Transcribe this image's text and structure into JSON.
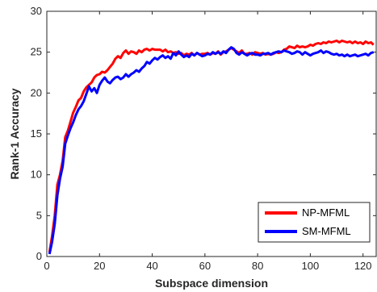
{
  "chart_data": {
    "type": "line",
    "title": "",
    "xlabel": "Subspace dimension",
    "ylabel": "Rank-1 Accuracy",
    "xlim": [
      0,
      125
    ],
    "ylim": [
      0,
      30
    ],
    "x_ticks": [
      "0",
      "20",
      "40",
      "60",
      "80",
      "100",
      "120"
    ],
    "y_ticks": [
      "0",
      "5",
      "10",
      "15",
      "20",
      "25",
      "30"
    ],
    "grid": false,
    "legend_position": "bottom-right",
    "x": [
      1,
      2,
      3,
      4,
      5,
      6,
      7,
      8,
      9,
      10,
      11,
      12,
      13,
      14,
      15,
      16,
      17,
      18,
      19,
      20,
      21,
      22,
      23,
      24,
      25,
      26,
      27,
      28,
      29,
      30,
      31,
      32,
      33,
      34,
      35,
      36,
      37,
      38,
      39,
      40,
      41,
      42,
      43,
      44,
      45,
      46,
      47,
      48,
      49,
      50,
      51,
      52,
      53,
      54,
      55,
      56,
      57,
      58,
      59,
      60,
      61,
      62,
      63,
      64,
      65,
      66,
      67,
      68,
      69,
      70,
      71,
      72,
      73,
      74,
      75,
      76,
      77,
      78,
      79,
      80,
      81,
      82,
      83,
      84,
      85,
      86,
      87,
      88,
      89,
      90,
      91,
      92,
      93,
      94,
      95,
      96,
      97,
      98,
      99,
      100,
      101,
      102,
      103,
      104,
      105,
      106,
      107,
      108,
      109,
      110,
      111,
      112,
      113,
      114,
      115,
      116,
      117,
      118,
      119,
      120,
      121,
      122,
      123,
      124
    ],
    "series": [
      {
        "name": "NP-MFML",
        "color": "#ff0000",
        "values": [
          0.5,
          2.5,
          5.0,
          8.8,
          10.0,
          11.7,
          14.6,
          15.4,
          16.5,
          17.6,
          18.3,
          19.1,
          19.4,
          20.2,
          20.7,
          21.0,
          21.3,
          21.9,
          22.2,
          22.3,
          22.6,
          22.5,
          22.8,
          23.2,
          23.6,
          24.2,
          24.5,
          24.3,
          24.9,
          25.2,
          24.8,
          25.1,
          25.0,
          24.8,
          25.2,
          25.0,
          25.3,
          25.4,
          25.2,
          25.4,
          25.3,
          25.3,
          25.3,
          25.1,
          25.3,
          25.0,
          25.1,
          24.9,
          25.0,
          24.8,
          24.9,
          24.6,
          24.8,
          24.7,
          24.9,
          24.6,
          24.9,
          24.7,
          24.8,
          24.8,
          24.9,
          24.7,
          24.9,
          24.8,
          25.1,
          24.7,
          25.0,
          25.1,
          25.3,
          25.5,
          25.3,
          25.1,
          24.9,
          25.2,
          24.8,
          24.8,
          24.9,
          24.7,
          25.0,
          24.9,
          24.8,
          24.9,
          24.7,
          24.8,
          24.7,
          24.8,
          25.0,
          24.9,
          25.0,
          25.3,
          25.4,
          25.7,
          25.6,
          25.5,
          25.8,
          25.6,
          25.7,
          25.6,
          25.7,
          25.9,
          25.8,
          26.0,
          26.1,
          26.0,
          26.2,
          26.1,
          26.3,
          26.2,
          26.3,
          26.4,
          26.2,
          26.4,
          26.3,
          26.2,
          26.3,
          26.1,
          26.3,
          26.1,
          26.2,
          26.0,
          26.3,
          26.1,
          26.2,
          25.9
        ]
      },
      {
        "name": "SM-MFML",
        "color": "#0000ff",
        "values": [
          0.3,
          1.8,
          4.0,
          7.5,
          9.5,
          11.0,
          13.8,
          14.8,
          15.7,
          16.4,
          17.3,
          18.0,
          18.4,
          19.0,
          19.9,
          20.8,
          20.2,
          20.6,
          20.0,
          21.0,
          21.5,
          21.9,
          21.4,
          21.2,
          21.6,
          21.9,
          22.0,
          21.7,
          21.9,
          22.3,
          22.0,
          22.3,
          22.5,
          22.8,
          22.6,
          23.0,
          23.3,
          23.8,
          23.6,
          24.0,
          24.3,
          24.1,
          24.4,
          24.6,
          24.3,
          24.5,
          24.2,
          24.9,
          24.6,
          25.1,
          24.7,
          24.4,
          24.6,
          24.4,
          24.8,
          24.6,
          24.9,
          24.7,
          24.5,
          24.6,
          24.8,
          24.7,
          25.0,
          24.8,
          25.0,
          24.8,
          25.1,
          24.9,
          25.3,
          25.6,
          25.4,
          24.9,
          24.7,
          25.0,
          24.8,
          24.6,
          24.8,
          24.9,
          24.7,
          24.7,
          24.6,
          24.8,
          24.8,
          24.9,
          24.7,
          24.9,
          25.0,
          25.1,
          25.0,
          25.2,
          25.1,
          25.0,
          24.8,
          24.9,
          25.1,
          25.0,
          24.7,
          25.0,
          24.8,
          24.6,
          24.8,
          24.9,
          25.0,
          25.2,
          24.9,
          25.1,
          25.0,
          24.8,
          24.7,
          24.8,
          24.6,
          24.7,
          24.5,
          24.7,
          24.5,
          24.6,
          24.7,
          24.5,
          24.6,
          24.7,
          24.8,
          24.6,
          24.9,
          25.0
        ]
      }
    ]
  }
}
